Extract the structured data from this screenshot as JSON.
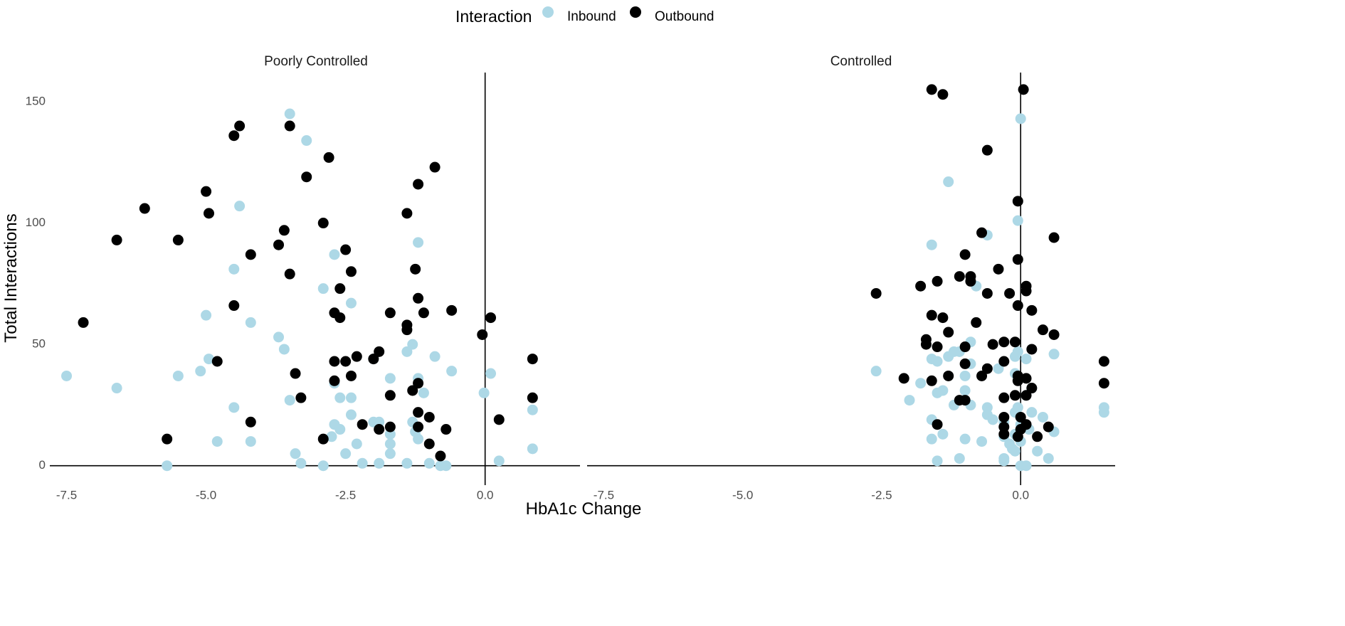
{
  "chart_data": {
    "type": "scatter",
    "legend": {
      "title": "Interaction",
      "position": "top",
      "entries": [
        {
          "name": "Inbound",
          "color": "#ADD8E6"
        },
        {
          "name": "Outbound",
          "color": "#000000"
        }
      ]
    },
    "xlabel": "HbA1c Change",
    "ylabel": "Total Interactions",
    "xlim": [
      -7.8,
      1.7
    ],
    "ylim": [
      -8,
      162
    ],
    "x_ticks": [
      -7.5,
      -5.0,
      -2.5,
      0.0
    ],
    "x_tick_labels": [
      "-7.5",
      "-5.0",
      "-2.5",
      "0.0"
    ],
    "y_ticks": [
      0,
      50,
      100,
      150
    ],
    "y_tick_labels": [
      "0",
      "50",
      "100",
      "150"
    ],
    "grid": false,
    "reference_lines": {
      "x": 0,
      "y": 0
    },
    "panels": [
      {
        "label": "Poorly Controlled",
        "series": [
          {
            "name": "Inbound",
            "color": "#ADD8E6",
            "points": [
              [
                -3.5,
                145
              ],
              [
                -3.2,
                134
              ],
              [
                -4.4,
                107
              ],
              [
                -1.2,
                92
              ],
              [
                -2.7,
                87
              ],
              [
                -4.5,
                81
              ],
              [
                -2.9,
                73
              ],
              [
                -2.4,
                67
              ],
              [
                -5.0,
                62
              ],
              [
                -4.2,
                59
              ],
              [
                -3.7,
                53
              ],
              [
                -1.3,
                50
              ],
              [
                -3.6,
                48
              ],
              [
                -1.4,
                47
              ],
              [
                -0.9,
                45
              ],
              [
                -2.0,
                44
              ],
              [
                -7.5,
                37
              ],
              [
                -5.5,
                37
              ],
              [
                -5.1,
                39
              ],
              [
                -1.7,
                36
              ],
              [
                -1.2,
                36
              ],
              [
                -0.6,
                39
              ],
              [
                -2.7,
                34
              ],
              [
                0.1,
                38
              ],
              [
                -6.6,
                32
              ],
              [
                -1.1,
                30
              ],
              [
                -0.02,
                30
              ],
              [
                -2.6,
                28
              ],
              [
                -2.4,
                28
              ],
              [
                -3.5,
                27
              ],
              [
                -4.5,
                24
              ],
              [
                0.85,
                23
              ],
              [
                -2.4,
                21
              ],
              [
                -2.7,
                17
              ],
              [
                -2.6,
                15
              ],
              [
                -2.0,
                18
              ],
              [
                -1.9,
                18
              ],
              [
                -1.3,
                18
              ],
              [
                -1.25,
                14
              ],
              [
                -1.7,
                13
              ],
              [
                -2.75,
                12
              ],
              [
                -1.2,
                11
              ],
              [
                -4.8,
                10
              ],
              [
                -4.2,
                10
              ],
              [
                -2.3,
                9
              ],
              [
                -1.7,
                9
              ],
              [
                0.85,
                7
              ],
              [
                -3.4,
                5
              ],
              [
                -2.5,
                5
              ],
              [
                -1.7,
                5
              ],
              [
                -3.3,
                1
              ],
              [
                -2.9,
                0
              ],
              [
                -2.2,
                1
              ],
              [
                -1.9,
                1
              ],
              [
                -1.4,
                1
              ],
              [
                -1.0,
                1
              ],
              [
                -0.8,
                0
              ],
              [
                -0.7,
                0
              ],
              [
                0.25,
                2
              ],
              [
                -5.7,
                0
              ],
              [
                -4.95,
                44
              ]
            ]
          },
          {
            "name": "Outbound",
            "color": "#000000",
            "points": [
              [
                -4.4,
                140
              ],
              [
                -3.5,
                140
              ],
              [
                -4.5,
                136
              ],
              [
                -2.8,
                127
              ],
              [
                -0.9,
                123
              ],
              [
                -3.2,
                119
              ],
              [
                -1.2,
                116
              ],
              [
                -5.0,
                113
              ],
              [
                -6.1,
                106
              ],
              [
                -4.95,
                104
              ],
              [
                -1.4,
                104
              ],
              [
                -2.9,
                100
              ],
              [
                -3.6,
                97
              ],
              [
                -6.6,
                93
              ],
              [
                -5.5,
                93
              ],
              [
                -3.7,
                91
              ],
              [
                -2.5,
                89
              ],
              [
                -4.2,
                87
              ],
              [
                -1.25,
                81
              ],
              [
                -2.4,
                80
              ],
              [
                -3.5,
                79
              ],
              [
                -2.6,
                73
              ],
              [
                -1.2,
                69
              ],
              [
                -4.5,
                66
              ],
              [
                -2.7,
                63
              ],
              [
                -1.1,
                63
              ],
              [
                -0.6,
                64
              ],
              [
                -1.7,
                63
              ],
              [
                -2.6,
                61
              ],
              [
                0.1,
                61
              ],
              [
                -7.2,
                59
              ],
              [
                -1.4,
                58
              ],
              [
                -1.4,
                56
              ],
              [
                -0.05,
                54
              ],
              [
                -4.8,
                43
              ],
              [
                -2.7,
                43
              ],
              [
                -2.5,
                43
              ],
              [
                -2.3,
                45
              ],
              [
                -2.0,
                44
              ],
              [
                -1.9,
                47
              ],
              [
                0.85,
                44
              ],
              [
                -3.4,
                38
              ],
              [
                -2.4,
                37
              ],
              [
                -1.2,
                34
              ],
              [
                -1.3,
                31
              ],
              [
                -2.7,
                35
              ],
              [
                -1.7,
                29
              ],
              [
                -3.3,
                28
              ],
              [
                0.85,
                28
              ],
              [
                -1.2,
                22
              ],
              [
                -1.0,
                20
              ],
              [
                -4.2,
                18
              ],
              [
                0.25,
                19
              ],
              [
                -2.2,
                17
              ],
              [
                -1.9,
                15
              ],
              [
                -1.7,
                16
              ],
              [
                -1.2,
                16
              ],
              [
                -0.7,
                15
              ],
              [
                -2.9,
                11
              ],
              [
                -5.7,
                11
              ],
              [
                -1.0,
                9
              ],
              [
                -0.8,
                4
              ]
            ]
          }
        ]
      },
      {
        "label": "Controlled",
        "series": [
          {
            "name": "Inbound",
            "color": "#ADD8E6",
            "points": [
              [
                0.0,
                143
              ],
              [
                -1.3,
                117
              ],
              [
                -0.05,
                101
              ],
              [
                -0.6,
                95
              ],
              [
                -1.6,
                91
              ],
              [
                -0.8,
                74
              ],
              [
                -0.9,
                51
              ],
              [
                -1.1,
                47
              ],
              [
                -1.6,
                44
              ],
              [
                -1.5,
                43
              ],
              [
                -1.3,
                45
              ],
              [
                -1.2,
                47
              ],
              [
                -0.9,
                42
              ],
              [
                -0.05,
                47
              ],
              [
                -0.1,
                45
              ],
              [
                0.1,
                44
              ],
              [
                0.6,
                46
              ],
              [
                -2.6,
                39
              ],
              [
                -1.0,
                37
              ],
              [
                -0.4,
                40
              ],
              [
                -0.1,
                38
              ],
              [
                -1.8,
                34
              ],
              [
                -1.4,
                31
              ],
              [
                -1.0,
                31
              ],
              [
                0.1,
                29
              ],
              [
                0.2,
                32
              ],
              [
                -2.0,
                27
              ],
              [
                -1.5,
                30
              ],
              [
                -1.0,
                27
              ],
              [
                -0.6,
                24
              ],
              [
                -1.2,
                25
              ],
              [
                -0.9,
                25
              ],
              [
                -0.6,
                21
              ],
              [
                -0.1,
                22
              ],
              [
                -0.05,
                24
              ],
              [
                0.2,
                22
              ],
              [
                0.4,
                20
              ],
              [
                -1.6,
                19
              ],
              [
                -0.5,
                19
              ],
              [
                -0.3,
                18
              ],
              [
                0.0,
                17
              ],
              [
                0.15,
                15
              ],
              [
                -0.1,
                13
              ],
              [
                -1.6,
                11
              ],
              [
                -1.0,
                11
              ],
              [
                -0.7,
                10
              ],
              [
                0.0,
                10
              ],
              [
                -0.3,
                12
              ],
              [
                0.6,
                14
              ],
              [
                1.5,
                24
              ],
              [
                1.5,
                22
              ],
              [
                -0.2,
                9
              ],
              [
                -0.15,
                7
              ],
              [
                -0.1,
                6
              ],
              [
                0.3,
                6
              ],
              [
                -1.4,
                13
              ],
              [
                -1.5,
                2
              ],
              [
                -1.1,
                3
              ],
              [
                -0.3,
                3
              ],
              [
                -0.3,
                2
              ],
              [
                0.5,
                3
              ],
              [
                0.0,
                0
              ],
              [
                0.1,
                0
              ]
            ]
          },
          {
            "name": "Outbound",
            "color": "#000000",
            "points": [
              [
                -1.6,
                155
              ],
              [
                -1.4,
                153
              ],
              [
                0.05,
                155
              ],
              [
                -0.6,
                130
              ],
              [
                -0.05,
                109
              ],
              [
                -0.7,
                96
              ],
              [
                0.6,
                94
              ],
              [
                -1.0,
                87
              ],
              [
                -0.05,
                85
              ],
              [
                -0.4,
                81
              ],
              [
                -1.5,
                76
              ],
              [
                -1.1,
                78
              ],
              [
                -0.9,
                78
              ],
              [
                -0.9,
                76
              ],
              [
                -1.8,
                74
              ],
              [
                -2.6,
                71
              ],
              [
                -0.6,
                71
              ],
              [
                -0.2,
                71
              ],
              [
                0.1,
                74
              ],
              [
                0.1,
                72
              ],
              [
                -0.05,
                66
              ],
              [
                0.2,
                64
              ],
              [
                -1.6,
                62
              ],
              [
                -1.4,
                61
              ],
              [
                -0.8,
                59
              ],
              [
                0.4,
                56
              ],
              [
                0.6,
                54
              ],
              [
                -1.7,
                52
              ],
              [
                -1.3,
                55
              ],
              [
                -1.7,
                50
              ],
              [
                -1.5,
                49
              ],
              [
                -1.0,
                49
              ],
              [
                -0.5,
                50
              ],
              [
                -0.3,
                51
              ],
              [
                -0.1,
                51
              ],
              [
                0.2,
                48
              ],
              [
                -0.3,
                43
              ],
              [
                -1.0,
                42
              ],
              [
                -0.6,
                40
              ],
              [
                -0.7,
                37
              ],
              [
                -0.05,
                37
              ],
              [
                -0.05,
                35
              ],
              [
                0.1,
                36
              ],
              [
                -2.1,
                36
              ],
              [
                -1.3,
                37
              ],
              [
                -1.6,
                35
              ],
              [
                -0.3,
                28
              ],
              [
                -0.1,
                29
              ],
              [
                0.1,
                29
              ],
              [
                0.2,
                32
              ],
              [
                -1.1,
                27
              ],
              [
                -1.0,
                27
              ],
              [
                -0.3,
                20
              ],
              [
                0.0,
                20
              ],
              [
                -1.5,
                17
              ],
              [
                0.1,
                17
              ],
              [
                0.0,
                15
              ],
              [
                -0.3,
                16
              ],
              [
                -0.3,
                13
              ],
              [
                0.3,
                12
              ],
              [
                -0.05,
                12
              ],
              [
                0.5,
                16
              ],
              [
                1.5,
                43
              ],
              [
                1.5,
                34
              ]
            ]
          }
        ]
      }
    ]
  }
}
